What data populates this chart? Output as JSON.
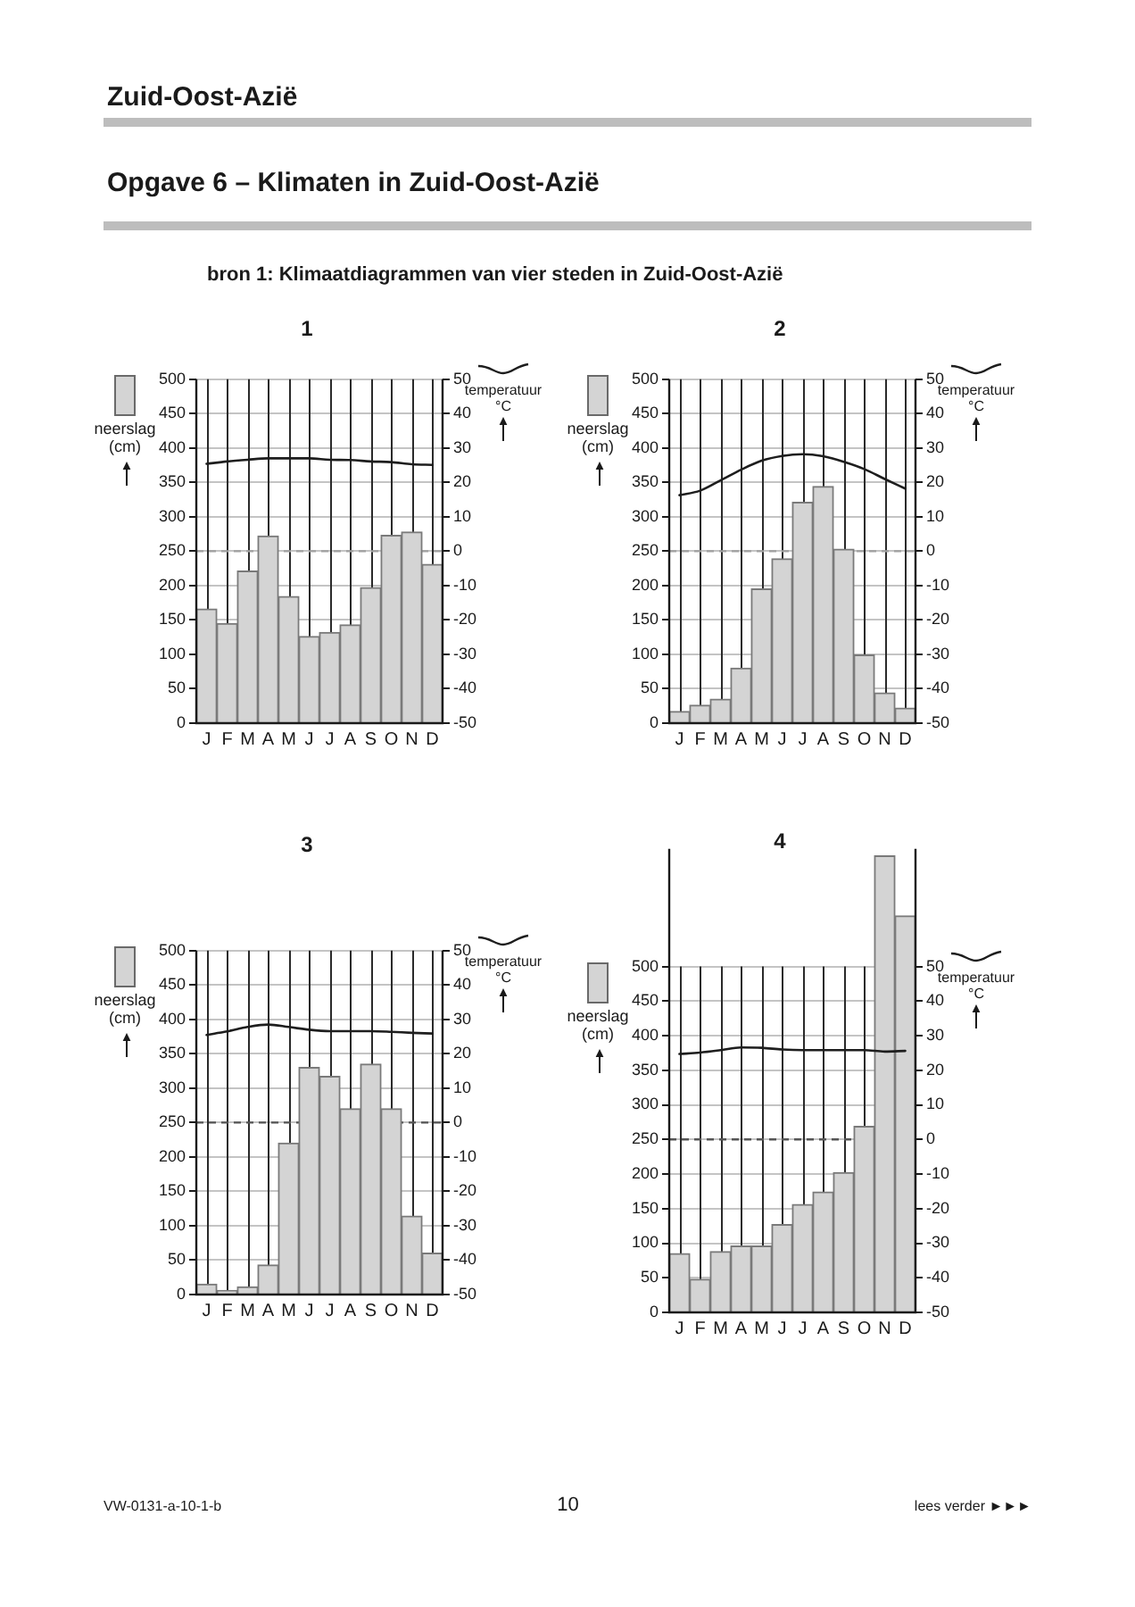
{
  "chart_data": [
    {
      "type": "other",
      "title": "Zuid-Oost-Azië",
      "subtitle": "Opgave 6 – Klimaten in Zuid-Oost-Azië",
      "annotations": [
        "bron 1: Klimaatdiagrammen van vier steden in Zuid-Oost-Azië"
      ]
    },
    {
      "type": "bar",
      "title": "1",
      "categories": [
        "J",
        "F",
        "M",
        "A",
        "M",
        "J",
        "J",
        "A",
        "S",
        "O",
        "N",
        "D"
      ],
      "series": [
        {
          "color": "#d4d4d4",
          "values": [
            166,
            145,
            221,
            272,
            184,
            126,
            132,
            143,
            197,
            273,
            278,
            231
          ]
        },
        {
          "type": "line",
          "axis": "y2",
          "color": "#1e1e1e",
          "values": [
            25.4,
            26.1,
            26.6,
            27,
            27,
            27,
            26.6,
            26.5,
            26.1,
            25.9,
            25.3,
            25.1
          ]
        }
      ],
      "ylabel": "neerslag (cm)",
      "y2label": "temperatuur °C",
      "ylim": [
        0,
        500
      ],
      "yticks": [
        0,
        50,
        100,
        150,
        200,
        250,
        300,
        350,
        400,
        450,
        500
      ],
      "y2lim": [
        -50,
        50
      ],
      "y2ticks": [
        -50,
        -40,
        -30,
        -20,
        -10,
        0,
        10,
        20,
        30,
        40,
        50
      ],
      "grid": true,
      "marker": "none",
      "ref_lines": [
        {
          "axis": "y2",
          "value": 0,
          "color": "#a0a0a0",
          "line_style": "dashed"
        }
      ]
    },
    {
      "type": "bar",
      "title": "2",
      "categories": [
        "J",
        "F",
        "M",
        "A",
        "M",
        "J",
        "J",
        "A",
        "S",
        "O",
        "N",
        "D"
      ],
      "series": [
        {
          "color": "#d4d4d4",
          "values": [
            17,
            26,
            35,
            80,
            195,
            239,
            321,
            344,
            253,
            99,
            44,
            22
          ]
        },
        {
          "type": "line",
          "axis": "y2",
          "color": "#1e1e1e",
          "values": [
            16.3,
            17.6,
            20.6,
            23.7,
            26.3,
            27.7,
            28.2,
            27.6,
            26,
            23.9,
            21,
            18.2
          ]
        }
      ],
      "ylabel": "neerslag (cm)",
      "y2label": "temperatuur °C",
      "ylim": [
        0,
        500
      ],
      "yticks": [
        0,
        50,
        100,
        150,
        200,
        250,
        300,
        350,
        400,
        450,
        500
      ],
      "y2lim": [
        -50,
        50
      ],
      "y2ticks": [
        -50,
        -40,
        -30,
        -20,
        -10,
        0,
        10,
        20,
        30,
        40,
        50
      ],
      "grid": true,
      "marker": "none",
      "ref_lines": [
        {
          "axis": "y2",
          "value": 0,
          "color": "#a0a0a0",
          "line_style": "dashed"
        }
      ]
    },
    {
      "type": "bar",
      "title": "3",
      "categories": [
        "J",
        "F",
        "M",
        "A",
        "M",
        "J",
        "J",
        "A",
        "S",
        "O",
        "N",
        "D"
      ],
      "series": [
        {
          "color": "#d4d4d4",
          "values": [
            15,
            6,
            11,
            43,
            220,
            330,
            317,
            270,
            335,
            270,
            114,
            60
          ]
        },
        {
          "type": "line",
          "axis": "y2",
          "color": "#1e1e1e",
          "values": [
            25.5,
            26.5,
            27.8,
            28.5,
            27.8,
            27,
            26.6,
            26.6,
            26.6,
            26.4,
            26.1,
            25.9
          ]
        }
      ],
      "ylabel": "neerslag (cm)",
      "y2label": "temperatuur °C",
      "ylim": [
        0,
        500
      ],
      "yticks": [
        0,
        50,
        100,
        150,
        200,
        250,
        300,
        350,
        400,
        450,
        500
      ],
      "y2lim": [
        -50,
        50
      ],
      "y2ticks": [
        -50,
        -40,
        -30,
        -20,
        -10,
        0,
        10,
        20,
        30,
        40,
        50
      ],
      "grid": true,
      "marker": "none",
      "ref_lines": [
        {
          "axis": "y2",
          "value": 0,
          "color": "#555555",
          "line_style": "dashed"
        }
      ]
    },
    {
      "type": "bar",
      "title": "4",
      "categories": [
        "J",
        "F",
        "M",
        "A",
        "M",
        "J",
        "J",
        "A",
        "S",
        "O",
        "N",
        "D"
      ],
      "series": [
        {
          "color": "#d4d4d4",
          "values": [
            85,
            48,
            88,
            96,
            96,
            127,
            156,
            174,
            202,
            269,
            660,
            573
          ]
        },
        {
          "type": "line",
          "axis": "y2",
          "color": "#1e1e1e",
          "values": [
            24.7,
            25.1,
            25.8,
            26.6,
            26.5,
            26,
            25.8,
            25.8,
            25.8,
            25.8,
            25.4,
            25.6
          ]
        }
      ],
      "ylabel": "neerslag (cm)",
      "y2label": "temperatuur °C",
      "ylim": [
        0,
        670
      ],
      "yticks": [
        0,
        50,
        100,
        150,
        200,
        250,
        300,
        350,
        400,
        450,
        500
      ],
      "y2lim": [
        -50,
        84
      ],
      "y2ticks": [
        -50,
        -40,
        -30,
        -20,
        -10,
        0,
        10,
        20,
        30,
        40,
        50
      ],
      "grid": true,
      "marker": "none",
      "ref_lines": [
        {
          "axis": "y2",
          "value": 0,
          "color": "#555555",
          "line_style": "dashed"
        }
      ]
    },
    {
      "type": "other",
      "annotations": [
        "VW-0131-a-10-1-b",
        "10",
        "lees verder ►►►"
      ]
    }
  ]
}
